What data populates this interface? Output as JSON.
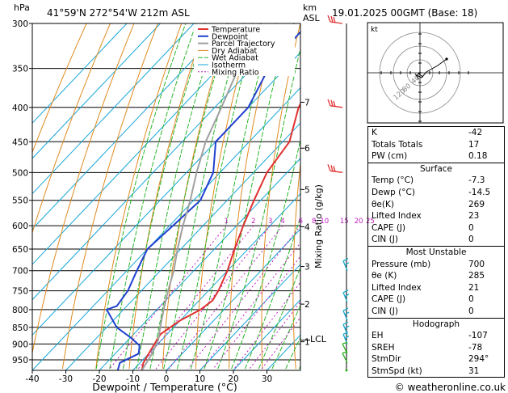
{
  "header": {
    "pressure_unit": "hPa",
    "location": "41°59'N  272°54'W  212m  ASL",
    "height_unit": "km",
    "height_unit2": "ASL",
    "datetime": "19.01.2025  00GMT  (Base: 18)"
  },
  "chart_data": {
    "type": "line",
    "title": "",
    "xlabel": "Dewpoint / Temperature (°C)",
    "ylabel": "hPa",
    "xlim": [
      -40,
      40
    ],
    "pressure_levels": [
      300,
      350,
      400,
      450,
      500,
      550,
      600,
      650,
      700,
      750,
      800,
      850,
      900,
      950
    ],
    "x_ticks": [
      -40,
      -30,
      -20,
      -10,
      0,
      10,
      20,
      30
    ],
    "km_ticks": [
      {
        "km": "7",
        "p": 393
      },
      {
        "km": "6",
        "p": 460
      },
      {
        "km": "5",
        "p": 530
      },
      {
        "km": "4",
        "p": 602
      },
      {
        "km": "3",
        "p": 690
      },
      {
        "km": "2",
        "p": 785
      },
      {
        "km": "1",
        "p": 893
      }
    ],
    "lcl": {
      "label": "LCL",
      "p": 888
    },
    "mixing_ratio_label": "Mixing Ratio (g/kg)",
    "mixing_ratio_ticks": [
      "1",
      "2",
      "3",
      "4",
      "6",
      "8",
      "10",
      "15",
      "20",
      "25"
    ],
    "legend": [
      "Temperature",
      "Dewpoint",
      "Parcel Trajectory",
      "Dry Adiabat",
      "Wet Adiabat",
      "Isotherm",
      "Mixing Ratio"
    ],
    "series": [
      {
        "name": "Temperature",
        "color": "#e03030",
        "points": [
          [
            300,
            -46
          ],
          [
            350,
            -40
          ],
          [
            400,
            -35
          ],
          [
            450,
            -28
          ],
          [
            500,
            -26
          ],
          [
            550,
            -22
          ],
          [
            600,
            -18
          ],
          [
            650,
            -14
          ],
          [
            700,
            -10
          ],
          [
            750,
            -7
          ],
          [
            775,
            -6
          ],
          [
            800,
            -7
          ],
          [
            830,
            -10
          ],
          [
            870,
            -12
          ],
          [
            900,
            -11
          ],
          [
            930,
            -10
          ],
          [
            960,
            -9
          ],
          [
            985,
            -7.3
          ]
        ]
      },
      {
        "name": "Dewpoint",
        "color": "#2040d0",
        "points": [
          [
            300,
            -56
          ],
          [
            350,
            -55
          ],
          [
            400,
            -50
          ],
          [
            450,
            -50
          ],
          [
            500,
            -42
          ],
          [
            550,
            -38
          ],
          [
            600,
            -39
          ],
          [
            650,
            -40
          ],
          [
            700,
            -37
          ],
          [
            750,
            -34
          ],
          [
            790,
            -33
          ],
          [
            800,
            -35
          ],
          [
            850,
            -27
          ],
          [
            880,
            -20
          ],
          [
            905,
            -15
          ],
          [
            930,
            -13
          ],
          [
            960,
            -16
          ],
          [
            985,
            -14.5
          ]
        ]
      },
      {
        "name": "Parcel Trajectory",
        "color": "#a0a0a0",
        "points": [
          [
            300,
            -70
          ],
          [
            350,
            -64
          ],
          [
            400,
            -58
          ],
          [
            450,
            -53
          ],
          [
            500,
            -47
          ],
          [
            550,
            -41
          ],
          [
            600,
            -36
          ],
          [
            650,
            -31
          ],
          [
            700,
            -26
          ],
          [
            750,
            -22
          ],
          [
            800,
            -18
          ],
          [
            850,
            -14
          ],
          [
            888,
            -11
          ],
          [
            930,
            -9
          ],
          [
            985,
            -7.3
          ]
        ]
      }
    ],
    "wind_colors": [
      "#e03030",
      "#1aa8c8",
      "#2bb020"
    ]
  },
  "hodograph": {
    "unit": "kt",
    "rings": [
      "40",
      "80",
      "120"
    ]
  },
  "indices": {
    "top": [
      {
        "label": "K",
        "value": "-42"
      },
      {
        "label": "Totals Totals",
        "value": "17"
      },
      {
        "label": "PW (cm)",
        "value": "0.18"
      }
    ],
    "surface": {
      "title": "Surface",
      "rows": [
        {
          "label": "Temp (°C)",
          "value": "-7.3"
        },
        {
          "label": "Dewp (°C)",
          "value": "-14.5"
        },
        {
          "label": "θe(K)",
          "value": "269"
        },
        {
          "label": "Lifted Index",
          "value": "23"
        },
        {
          "label": "CAPE (J)",
          "value": "0"
        },
        {
          "label": "CIN (J)",
          "value": "0"
        }
      ]
    },
    "unstable": {
      "title": "Most Unstable",
      "rows": [
        {
          "label": "Pressure (mb)",
          "value": "700"
        },
        {
          "label": "θe (K)",
          "value": "285"
        },
        {
          "label": "Lifted Index",
          "value": "21"
        },
        {
          "label": "CAPE (J)",
          "value": "0"
        },
        {
          "label": "CIN (J)",
          "value": "0"
        }
      ]
    },
    "hodograph": {
      "title": "Hodograph",
      "rows": [
        {
          "label": "EH",
          "value": "-107"
        },
        {
          "label": "SREH",
          "value": "-78"
        },
        {
          "label": "StmDir",
          "value": "294°"
        },
        {
          "label": "StmSpd (kt)",
          "value": "31"
        }
      ]
    }
  },
  "footer": {
    "copyright": "© weatheronline.co.uk"
  }
}
